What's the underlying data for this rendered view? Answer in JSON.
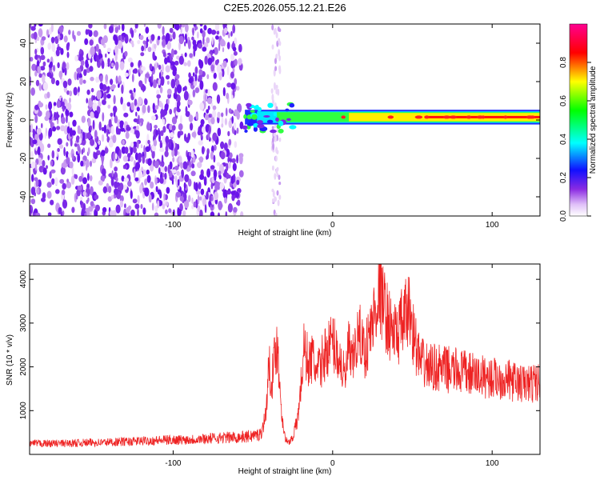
{
  "figure_title": "C2E5.2026.055.12.21.E26",
  "chart_data": [
    {
      "type": "heatmap",
      "title": "",
      "xlabel": "Height of straight line (km)",
      "ylabel": "Frequency (Hz)",
      "xlim": [
        -190,
        130
      ],
      "ylim": [
        -50,
        50
      ],
      "xticks": [
        -100,
        0,
        100
      ],
      "yticks": [
        -40,
        -20,
        0,
        20,
        40
      ],
      "grid": false,
      "colorbar": {
        "label": "Normalized spectral amplitude",
        "range": [
          0,
          1
        ],
        "ticks": [
          0.0,
          0.2,
          0.4,
          0.6,
          0.8
        ],
        "colors": [
          "#ffffff",
          "#e8c8f8",
          "#8a2be2",
          "#2020ff",
          "#00ffff",
          "#00ff00",
          "#ffff00",
          "#ff0000",
          "#ff00a0"
        ]
      },
      "features": {
        "noise_region_x": [
          -190,
          -57
        ],
        "sparse_region_x": [
          -38,
          -33
        ],
        "signal_band_center_hz": 1.5,
        "signal_band_halfwidth_hz": 3,
        "signal_start_x": -55,
        "peak_band_x": [
          60,
          130
        ]
      }
    },
    {
      "type": "line",
      "title": "",
      "xlabel": "Height of straight line (km)",
      "ylabel": "SNR (10 * v/v)",
      "xlim": [
        -190,
        130
      ],
      "ylim": [
        0,
        4350
      ],
      "xticks": [
        -100,
        0,
        100
      ],
      "yticks": [
        1000,
        2000,
        3000,
        4000
      ],
      "grid": false,
      "series": [
        {
          "color": "#ee2222",
          "x": [
            -190,
            -170,
            -150,
            -130,
            -110,
            -90,
            -70,
            -55,
            -45,
            -42,
            -40,
            -38,
            -35,
            -32,
            -30,
            -28,
            -25,
            -22,
            -20,
            -18,
            -15,
            -12,
            -10,
            -5,
            0,
            5,
            8,
            10,
            12,
            15,
            18,
            20,
            25,
            28,
            30,
            32,
            35,
            38,
            40,
            45,
            48,
            50,
            52,
            55,
            60,
            70,
            80,
            90,
            100,
            110,
            120,
            130
          ],
          "values": [
            250,
            250,
            270,
            290,
            320,
            340,
            380,
            400,
            460,
            900,
            2000,
            1700,
            2600,
            1000,
            400,
            250,
            400,
            800,
            1500,
            2400,
            2100,
            2200,
            1800,
            2300,
            2600,
            2100,
            1700,
            2500,
            2000,
            2600,
            2700,
            2300,
            3000,
            3600,
            3700,
            3400,
            3000,
            2800,
            2700,
            3100,
            3300,
            2900,
            2500,
            2100,
            2000,
            1950,
            1900,
            1800,
            1750,
            1700,
            1600,
            1650
          ]
        }
      ]
    }
  ]
}
